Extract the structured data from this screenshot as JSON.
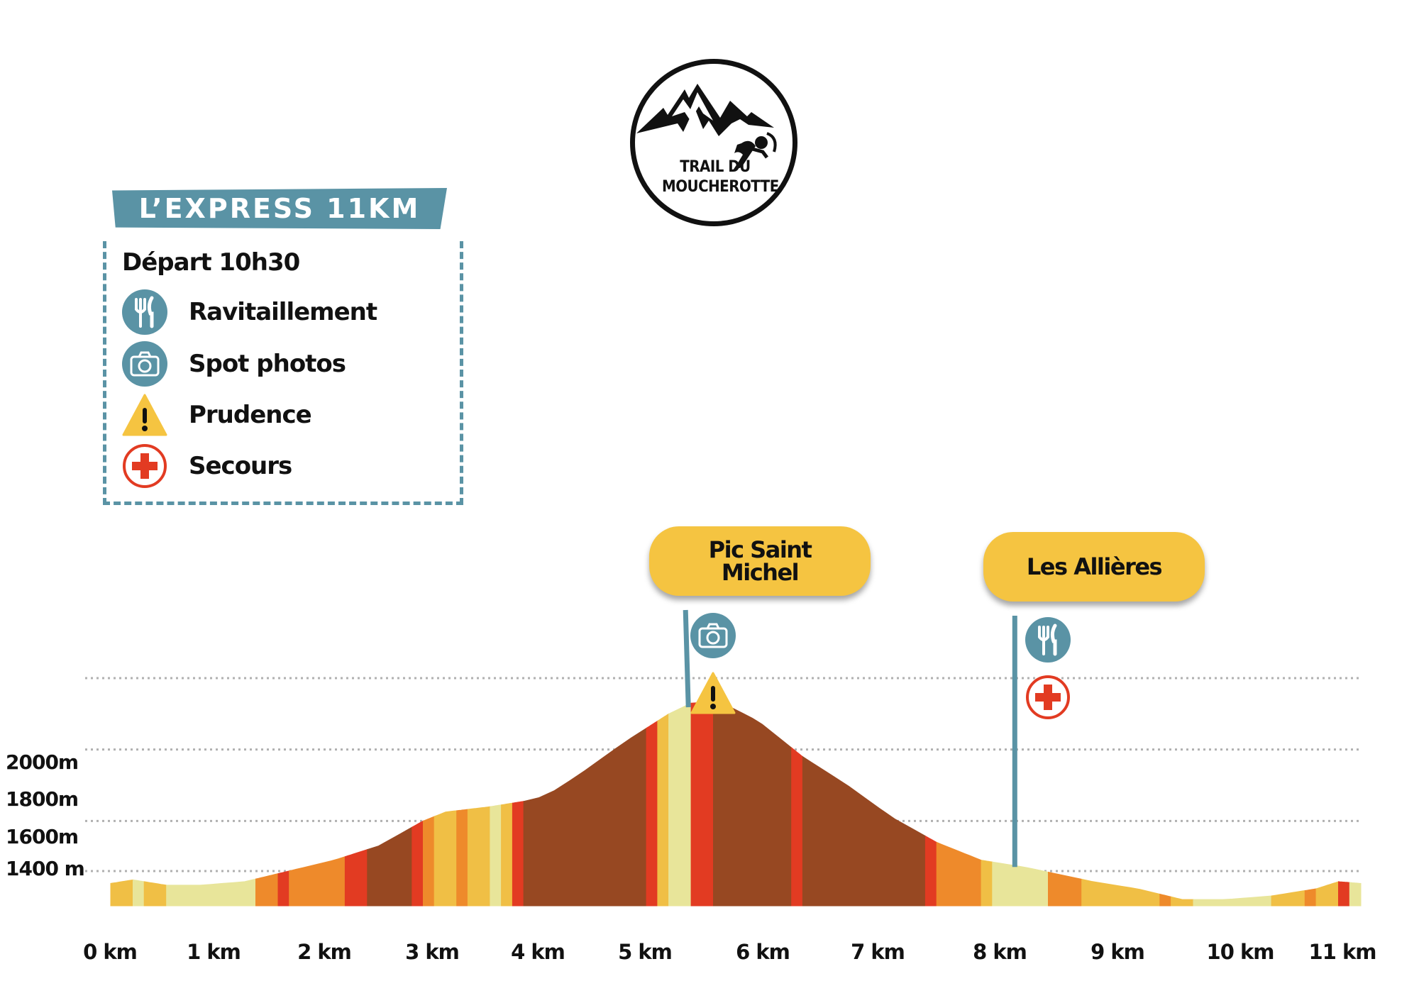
{
  "logo": {
    "line1": "TRAIL DU",
    "line2": "MOUCHEROTTE"
  },
  "title": "L’EXPRESS 11KM",
  "legend": {
    "depart": "Départ 10h30",
    "items": [
      {
        "icon": "fork-knife-icon",
        "label": "Ravitaillement"
      },
      {
        "icon": "camera-icon",
        "label": "Spot photos"
      },
      {
        "icon": "warning-icon",
        "label": "Prudence"
      },
      {
        "icon": "first-aid-icon",
        "label": "Secours"
      }
    ]
  },
  "colors": {
    "teal": "#5a93a5",
    "yellow": "#f5c441",
    "red": "#e23b22",
    "slope_colors": {
      "flat": "#e8e59a",
      "light": "#f0bf45",
      "moderate": "#ee8a2b",
      "steep": "#e23b22",
      "long": "#974822"
    }
  },
  "chart_data": {
    "type": "area",
    "xlabel": "",
    "ylabel": "",
    "x_ticks": [
      "0 km",
      "1 km",
      "2 km",
      "3 km",
      "4 km",
      "5 km",
      "6 km",
      "7 km",
      "8 km",
      "9 km",
      "10 km",
      "11 km"
    ],
    "y_ticks": [
      {
        "value": 1400,
        "label": "1400 m"
      },
      {
        "value": 1600,
        "label": "1600m"
      },
      {
        "value": 1800,
        "label": "1800m"
      },
      {
        "value": 2000,
        "label": "2000m"
      }
    ],
    "xlim": [
      0,
      11.2
    ],
    "ylim": [
      1200,
      2000
    ],
    "grid": "dotted horizontal",
    "elevation": [
      [
        0,
        1425
      ],
      [
        0.2,
        1435
      ],
      [
        0.5,
        1420
      ],
      [
        0.8,
        1420
      ],
      [
        1.2,
        1430
      ],
      [
        1.6,
        1460
      ],
      [
        2.0,
        1490
      ],
      [
        2.4,
        1530
      ],
      [
        2.8,
        1600
      ],
      [
        3.0,
        1625
      ],
      [
        3.4,
        1640
      ],
      [
        3.7,
        1655
      ],
      [
        3.9,
        1670
      ],
      [
        4.2,
        1730
      ],
      [
        4.6,
        1820
      ],
      [
        5.0,
        1900
      ],
      [
        5.2,
        1930
      ],
      [
        5.45,
        1935
      ],
      [
        5.8,
        1880
      ],
      [
        6.2,
        1780
      ],
      [
        6.6,
        1700
      ],
      [
        7.0,
        1610
      ],
      [
        7.4,
        1540
      ],
      [
        7.8,
        1490
      ],
      [
        8.2,
        1470
      ],
      [
        8.5,
        1450
      ],
      [
        8.8,
        1430
      ],
      [
        9.2,
        1410
      ],
      [
        9.6,
        1380
      ],
      [
        10.0,
        1380
      ],
      [
        10.4,
        1390
      ],
      [
        10.8,
        1410
      ],
      [
        11.0,
        1430
      ],
      [
        11.2,
        1425
      ]
    ],
    "segments": [
      {
        "from": 0.0,
        "to": 0.2,
        "class": "light"
      },
      {
        "from": 0.2,
        "to": 0.3,
        "class": "flat"
      },
      {
        "from": 0.3,
        "to": 0.5,
        "class": "light"
      },
      {
        "from": 0.5,
        "to": 1.3,
        "class": "flat"
      },
      {
        "from": 1.3,
        "to": 1.5,
        "class": "moderate"
      },
      {
        "from": 1.5,
        "to": 1.6,
        "class": "steep"
      },
      {
        "from": 1.6,
        "to": 2.1,
        "class": "moderate"
      },
      {
        "from": 2.1,
        "to": 2.3,
        "class": "steep"
      },
      {
        "from": 2.3,
        "to": 2.7,
        "class": "long"
      },
      {
        "from": 2.7,
        "to": 2.8,
        "class": "steep"
      },
      {
        "from": 2.8,
        "to": 2.9,
        "class": "moderate"
      },
      {
        "from": 2.9,
        "to": 3.1,
        "class": "light"
      },
      {
        "from": 3.1,
        "to": 3.2,
        "class": "moderate"
      },
      {
        "from": 3.2,
        "to": 3.4,
        "class": "light"
      },
      {
        "from": 3.4,
        "to": 3.5,
        "class": "flat"
      },
      {
        "from": 3.5,
        "to": 3.6,
        "class": "light"
      },
      {
        "from": 3.6,
        "to": 3.7,
        "class": "steep"
      },
      {
        "from": 3.7,
        "to": 4.8,
        "class": "long"
      },
      {
        "from": 4.8,
        "to": 4.9,
        "class": "steep"
      },
      {
        "from": 4.9,
        "to": 5.0,
        "class": "light"
      },
      {
        "from": 5.0,
        "to": 5.2,
        "class": "flat"
      },
      {
        "from": 5.2,
        "to": 5.4,
        "class": "steep"
      },
      {
        "from": 5.4,
        "to": 6.1,
        "class": "long"
      },
      {
        "from": 6.1,
        "to": 6.2,
        "class": "steep"
      },
      {
        "from": 6.2,
        "to": 7.3,
        "class": "long"
      },
      {
        "from": 7.3,
        "to": 7.4,
        "class": "steep"
      },
      {
        "from": 7.4,
        "to": 7.8,
        "class": "moderate"
      },
      {
        "from": 7.8,
        "to": 7.9,
        "class": "light"
      },
      {
        "from": 7.9,
        "to": 8.4,
        "class": "flat"
      },
      {
        "from": 8.4,
        "to": 8.7,
        "class": "moderate"
      },
      {
        "from": 8.7,
        "to": 9.4,
        "class": "light"
      },
      {
        "from": 9.4,
        "to": 9.5,
        "class": "moderate"
      },
      {
        "from": 9.5,
        "to": 9.7,
        "class": "light"
      },
      {
        "from": 9.7,
        "to": 10.4,
        "class": "flat"
      },
      {
        "from": 10.4,
        "to": 10.7,
        "class": "light"
      },
      {
        "from": 10.7,
        "to": 10.8,
        "class": "moderate"
      },
      {
        "from": 10.8,
        "to": 11.0,
        "class": "light"
      },
      {
        "from": 11.0,
        "to": 11.1,
        "class": "steep"
      },
      {
        "from": 11.1,
        "to": 11.2,
        "class": "flat"
      }
    ],
    "annotations": [
      {
        "name": "Pic Saint Michel",
        "lines": [
          "Pic Saint",
          "Michel"
        ],
        "km": 5.15,
        "icons": [
          "camera-icon",
          "warning-icon"
        ]
      },
      {
        "name": "Les Allières",
        "lines": [
          "Les Allières"
        ],
        "km": 8.1,
        "icons": [
          "fork-knife-icon",
          "first-aid-icon"
        ]
      }
    ]
  }
}
